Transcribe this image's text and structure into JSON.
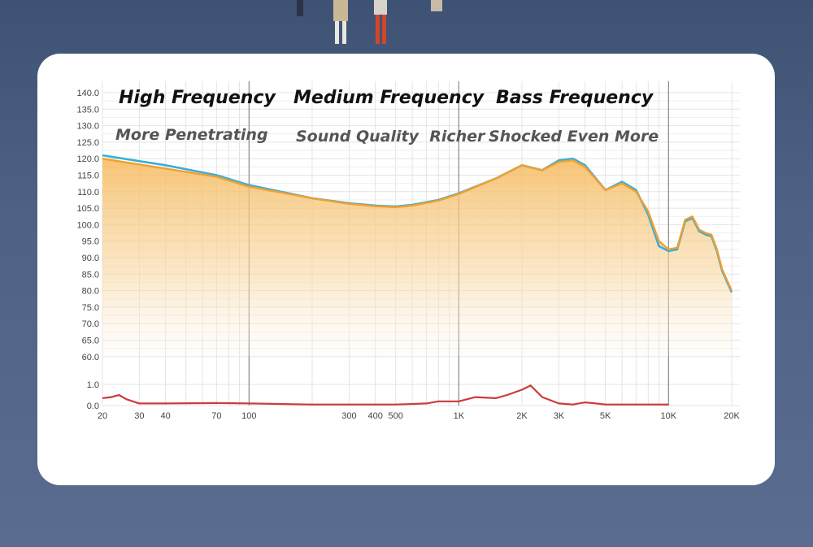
{
  "chart_data": {
    "type": "line",
    "x_scale": "log",
    "xlim": [
      20,
      20000
    ],
    "x_ticks": [
      {
        "value": 20,
        "label": "20"
      },
      {
        "value": 30,
        "label": "30"
      },
      {
        "value": 40,
        "label": "40"
      },
      {
        "value": 70,
        "label": "70"
      },
      {
        "value": 100,
        "label": "100"
      },
      {
        "value": 300,
        "label": "300"
      },
      {
        "value": 400,
        "label": "400"
      },
      {
        "value": 500,
        "label": "500"
      },
      {
        "value": 1000,
        "label": "1K"
      },
      {
        "value": 2000,
        "label": "2K"
      },
      {
        "value": 3000,
        "label": "3K"
      },
      {
        "value": 5000,
        "label": "5K"
      },
      {
        "value": 10000,
        "label": "10K"
      },
      {
        "value": 20000,
        "label": "20K"
      }
    ],
    "y_ticks": [
      "140.0",
      "135.0",
      "130.0",
      "125.0",
      "120.0",
      "115.0",
      "110.0",
      "105.0",
      "100.0",
      "95.0",
      "90.0",
      "85.0",
      "80.0",
      "75.0",
      "70.0",
      "65.0",
      "60.0",
      "1.0",
      "0.0"
    ],
    "grid": true,
    "sections": [
      {
        "title": "High Frequency",
        "subtitle": "More Penetrating",
        "x_end": 100
      },
      {
        "title": "Medium Frequency",
        "subtitle": "Sound Quality  Richer",
        "x_end": 1000
      },
      {
        "title": "Bass Frequency",
        "subtitle": "Shocked Even More",
        "x_end": 10000
      }
    ],
    "series": [
      {
        "color": "#3aaed8",
        "x": [
          20,
          40,
          70,
          100,
          200,
          300,
          400,
          500,
          600,
          800,
          1000,
          1500,
          2000,
          2500,
          3000,
          3500,
          4000,
          5000,
          6000,
          7000,
          8000,
          9000,
          10000,
          11000,
          12000,
          13000,
          14000,
          15000,
          16000,
          17000,
          18000,
          20000
        ],
        "y": [
          121,
          118,
          115,
          112,
          108,
          106.5,
          105.8,
          105.5,
          106,
          107.5,
          109.5,
          114,
          118,
          116.5,
          119.5,
          120,
          118,
          110.5,
          113,
          110.5,
          103,
          93.5,
          92,
          92.5,
          101,
          102,
          98,
          97,
          96.5,
          92,
          86,
          79.5
        ]
      },
      {
        "color": "#f0a030",
        "x": [
          20,
          40,
          70,
          100,
          200,
          300,
          400,
          500,
          600,
          800,
          1000,
          1500,
          2000,
          2500,
          3000,
          3500,
          4000,
          5000,
          6000,
          7000,
          8000,
          9000,
          10000,
          11000,
          12000,
          13000,
          14000,
          15000,
          16000,
          17000,
          18000,
          20000
        ],
        "y": [
          120,
          117,
          114.5,
          111.5,
          108,
          106.3,
          105.6,
          105.3,
          105.8,
          107.3,
          109.3,
          114,
          118,
          116.5,
          119,
          119.5,
          117.5,
          110.5,
          112.5,
          110,
          104,
          95,
          92.5,
          93,
          101.5,
          102.5,
          98.5,
          97.5,
          97,
          92.5,
          86.5,
          80
        ]
      },
      {
        "color": "#cc3b3b",
        "x": [
          20,
          22,
          24,
          26,
          30,
          40,
          70,
          100,
          200,
          300,
          500,
          700,
          800,
          1000,
          1200,
          1500,
          1700,
          2000,
          2200,
          2500,
          3000,
          3500,
          4000,
          4500,
          5000,
          6000,
          10000
        ],
        "y": [
          0.35,
          0.4,
          0.5,
          0.3,
          0.1,
          0.1,
          0.12,
          0.1,
          0.05,
          0.05,
          0.05,
          0.1,
          0.2,
          0.2,
          0.4,
          0.35,
          0.5,
          0.75,
          0.95,
          0.4,
          0.1,
          0.05,
          0.15,
          0.1,
          0.05,
          0.05,
          0.05
        ]
      }
    ]
  }
}
